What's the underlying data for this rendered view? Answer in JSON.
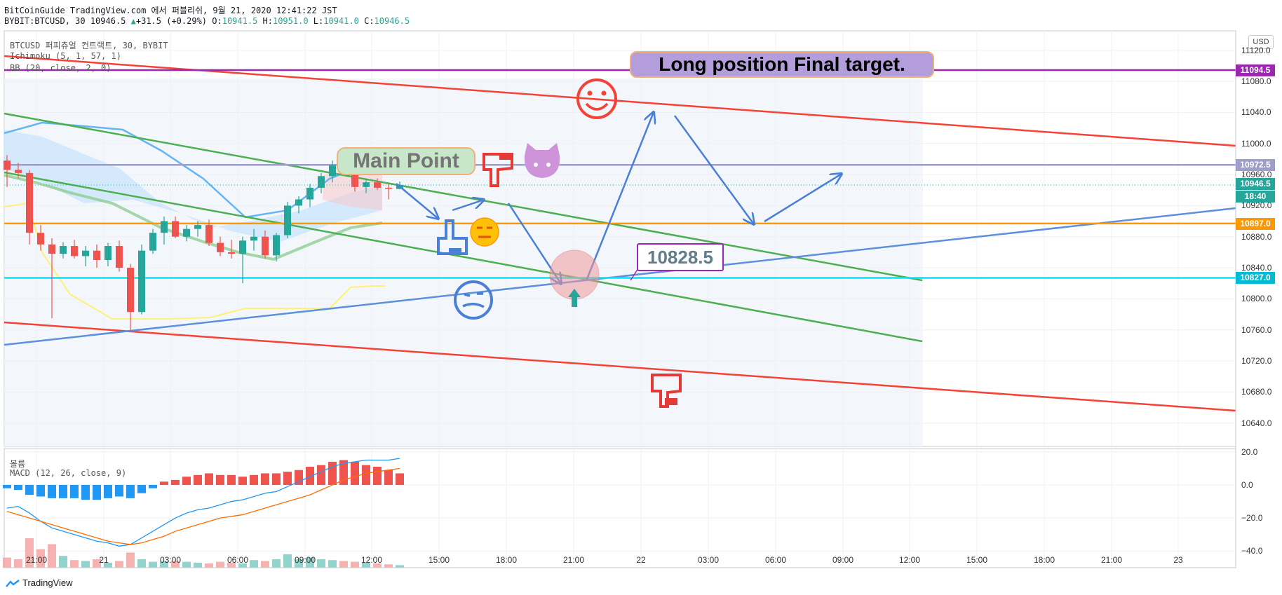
{
  "header": {
    "publish_line": "BitCoinGuide TradingView.com 에서 퍼블리쉬, 9월 21, 2020 12:41:22 JST",
    "symbol_interval": "BYBIT:BTCUSD, 30",
    "last_price": "10946.5",
    "change_arrow": "▲",
    "change": "+31.5 (+0.29%)",
    "o_label": "O:",
    "o_value": "10941.5",
    "h_label": "H:",
    "h_value": "10951.0",
    "l_label": "L:",
    "l_value": "10941.0",
    "c_label": "C:",
    "c_value": "10946.5"
  },
  "legend": {
    "symbol": "BTCUSD 퍼피츄얼 컨트랙트, 30, BYBIT",
    "ichimoku": "Ichimoku (5, 1, 57, 1)",
    "bb": "BB (20, close, 2, 0)",
    "volume": "볼륨",
    "macd": "MACD (12, 26, close, 9)"
  },
  "currency_button": "USD",
  "annotations": {
    "long_target": "Long position Final target.",
    "main_point": "Main Point",
    "price_callout": "10828.5"
  },
  "price_axis": {
    "labels": [
      "11120.0",
      "11080.0",
      "11040.0",
      "11000.0",
      "10960.0",
      "10920.0",
      "10880.0",
      "10840.0",
      "10800.0",
      "10760.0",
      "10720.0",
      "10680.0",
      "10640.0"
    ],
    "badges": [
      {
        "text": "11094.5",
        "color": "#9c27b0"
      },
      {
        "text": "10972.5",
        "color": "#9e9ec8"
      },
      {
        "text": "10946.5",
        "color": "#26a69a"
      },
      {
        "text": "18:40",
        "color": "#26a69a"
      },
      {
        "text": "10897.0",
        "color": "#ff9800"
      },
      {
        "text": "10827.0",
        "color": "#00bcd4"
      }
    ]
  },
  "macd_axis": {
    "labels": [
      "20.0",
      "0.0",
      "−20.0",
      "−40.0"
    ]
  },
  "time_axis": {
    "labels": [
      "21:00",
      "21",
      "03:00",
      "06:00",
      "09:00",
      "12:00",
      "15:00",
      "18:00",
      "21:00",
      "22",
      "03:00",
      "06:00",
      "09:00",
      "12:00",
      "15:00",
      "18:00",
      "21:00",
      "23"
    ]
  },
  "chart_data": {
    "type": "candlestick",
    "symbol": "BYBIT:BTCUSD",
    "interval": "30",
    "candles": [
      {
        "o": 10978,
        "h": 10985,
        "l": 10944,
        "c": 10966
      },
      {
        "o": 10966,
        "h": 10975,
        "l": 10955,
        "c": 10962
      },
      {
        "o": 10962,
        "h": 10966,
        "l": 10870,
        "c": 10885
      },
      {
        "o": 10885,
        "h": 10895,
        "l": 10862,
        "c": 10870
      },
      {
        "o": 10870,
        "h": 10878,
        "l": 10775,
        "c": 10858
      },
      {
        "o": 10858,
        "h": 10873,
        "l": 10852,
        "c": 10868
      },
      {
        "o": 10868,
        "h": 10876,
        "l": 10852,
        "c": 10855
      },
      {
        "o": 10855,
        "h": 10868,
        "l": 10842,
        "c": 10862
      },
      {
        "o": 10862,
        "h": 10870,
        "l": 10840,
        "c": 10850
      },
      {
        "o": 10850,
        "h": 10872,
        "l": 10842,
        "c": 10868
      },
      {
        "o": 10868,
        "h": 10875,
        "l": 10835,
        "c": 10840
      },
      {
        "o": 10840,
        "h": 10845,
        "l": 10757,
        "c": 10783
      },
      {
        "o": 10783,
        "h": 10870,
        "l": 10780,
        "c": 10862
      },
      {
        "o": 10862,
        "h": 10890,
        "l": 10858,
        "c": 10885
      },
      {
        "o": 10885,
        "h": 10906,
        "l": 10870,
        "c": 10900
      },
      {
        "o": 10900,
        "h": 10906,
        "l": 10878,
        "c": 10880
      },
      {
        "o": 10880,
        "h": 10895,
        "l": 10874,
        "c": 10890
      },
      {
        "o": 10890,
        "h": 10900,
        "l": 10880,
        "c": 10895
      },
      {
        "o": 10895,
        "h": 10902,
        "l": 10868,
        "c": 10872
      },
      {
        "o": 10872,
        "h": 10880,
        "l": 10855,
        "c": 10860
      },
      {
        "o": 10860,
        "h": 10876,
        "l": 10852,
        "c": 10858
      },
      {
        "o": 10858,
        "h": 10880,
        "l": 10820,
        "c": 10875
      },
      {
        "o": 10875,
        "h": 10890,
        "l": 10862,
        "c": 10880
      },
      {
        "o": 10880,
        "h": 10888,
        "l": 10852,
        "c": 10856
      },
      {
        "o": 10856,
        "h": 10885,
        "l": 10848,
        "c": 10882
      },
      {
        "o": 10882,
        "h": 10925,
        "l": 10878,
        "c": 10920
      },
      {
        "o": 10920,
        "h": 10932,
        "l": 10910,
        "c": 10928
      },
      {
        "o": 10928,
        "h": 10948,
        "l": 10918,
        "c": 10943
      },
      {
        "o": 10943,
        "h": 10962,
        "l": 10936,
        "c": 10958
      },
      {
        "o": 10958,
        "h": 10978,
        "l": 10950,
        "c": 10972
      },
      {
        "o": 10972,
        "h": 10980,
        "l": 10962,
        "c": 10970
      },
      {
        "o": 10970,
        "h": 10975,
        "l": 10938,
        "c": 10944
      },
      {
        "o": 10944,
        "h": 10955,
        "l": 10936,
        "c": 10950
      },
      {
        "o": 10950,
        "h": 10955,
        "l": 10940,
        "c": 10943
      },
      {
        "o": 10943,
        "h": 10948,
        "l": 10928,
        "c": 10942
      },
      {
        "o": 10941.5,
        "h": 10951,
        "l": 10941,
        "c": 10946.5
      }
    ],
    "volume": [
      12,
      10,
      35,
      22,
      28,
      14,
      9,
      8,
      10,
      6,
      8,
      18,
      10,
      7,
      8,
      8,
      7,
      6,
      5,
      7,
      6,
      5,
      9,
      8,
      10,
      16,
      10,
      12,
      10,
      9,
      8,
      7,
      6,
      5,
      4,
      3
    ],
    "macd": {
      "histogram": [
        -2,
        -3,
        -6,
        -7,
        -8,
        -8,
        -8,
        -9,
        -9,
        -8,
        -7,
        -8,
        -5,
        -2,
        2,
        3,
        5,
        6,
        7,
        6,
        6,
        5,
        6,
        7,
        7,
        8,
        9,
        11,
        12,
        14,
        15,
        14,
        12,
        11,
        9,
        7
      ],
      "macd_line": [
        -14,
        -13,
        -17,
        -22,
        -26,
        -28,
        -30,
        -32,
        -34,
        -35,
        -37,
        -36,
        -32,
        -28,
        -24,
        -20,
        -17,
        -15,
        -14,
        -12,
        -10,
        -9,
        -7,
        -5,
        -4,
        -1,
        2,
        5,
        8,
        11,
        13,
        14,
        15,
        15,
        15,
        16
      ],
      "signal_line": [
        -16,
        -18,
        -20,
        -22,
        -24,
        -26,
        -28,
        -30,
        -32,
        -34,
        -35,
        -36,
        -35,
        -33,
        -31,
        -28,
        -26,
        -24,
        -22,
        -20,
        -19,
        -18,
        -16,
        -14,
        -12,
        -10,
        -8,
        -6,
        -3,
        0,
        3,
        5,
        7,
        8,
        9,
        10
      ]
    },
    "horizontal_levels": [
      {
        "price": 11094.5,
        "color": "#9c27b0"
      },
      {
        "price": 10972.5,
        "color": "#9e9ec8"
      },
      {
        "price": 10897.0,
        "color": "#ff9800"
      },
      {
        "price": 10827.0,
        "color": "#00e5ff"
      }
    ],
    "y_range": [
      10610,
      11145
    ],
    "macd_range": [
      -50,
      22
    ],
    "last_price": 10946.5
  }
}
